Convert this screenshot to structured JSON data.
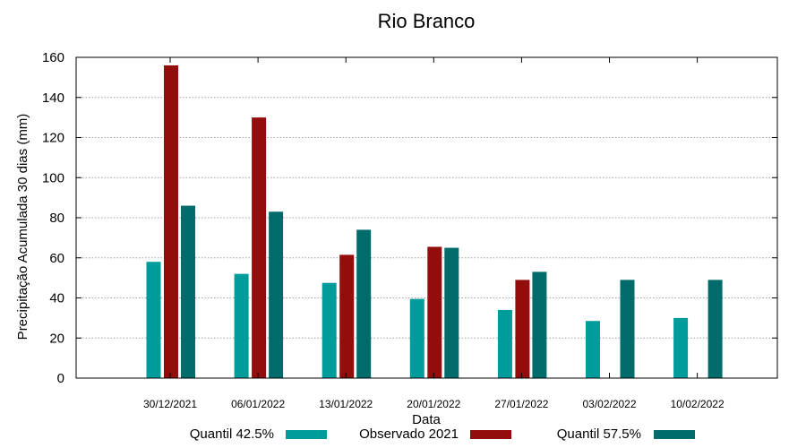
{
  "chart_data": {
    "type": "bar",
    "title": "Rio Branco",
    "xlabel": "Data",
    "ylabel": "Precipitação Acumulada 30 dias (mm)",
    "ylim": [
      0,
      160
    ],
    "yticks": [
      0,
      20,
      40,
      60,
      80,
      100,
      120,
      140,
      160
    ],
    "grid": true,
    "legend_position": "bottom",
    "categories": [
      "30/12/2021",
      "06/01/2022",
      "13/01/2022",
      "20/01/2022",
      "27/01/2022",
      "03/02/2022",
      "10/02/2022"
    ],
    "series": [
      {
        "name": "Quantil 42.5%",
        "color": "#009b9b",
        "values": [
          58,
          52,
          47.5,
          39.5,
          34,
          28.5,
          30
        ]
      },
      {
        "name": "Observado 2021",
        "color": "#930d0d",
        "values": [
          156,
          130,
          61.5,
          65.5,
          49,
          null,
          null
        ]
      },
      {
        "name": "Quantil 57.5%",
        "color": "#006b6b",
        "values": [
          86,
          83,
          74,
          65,
          53,
          49,
          49
        ]
      }
    ]
  }
}
